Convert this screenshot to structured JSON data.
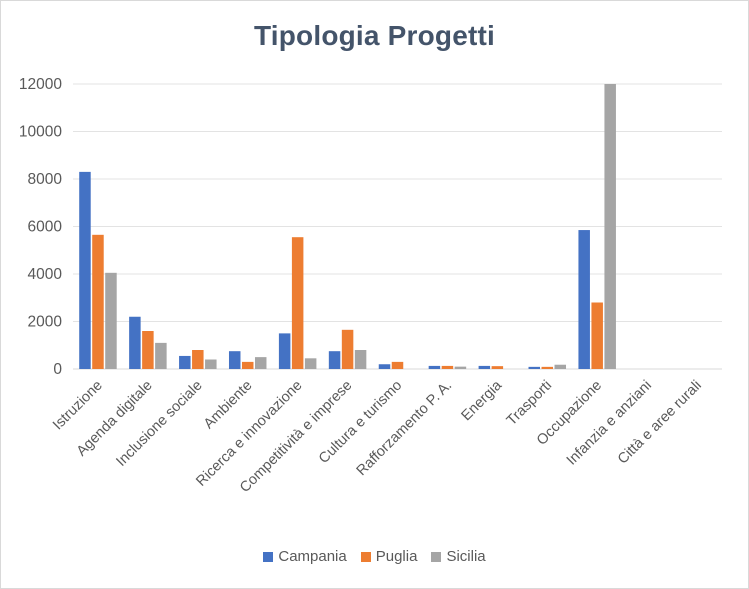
{
  "chart_data": {
    "type": "bar",
    "title": "Tipologia Progetti",
    "xlabel": "",
    "ylabel": "",
    "ylim": [
      0,
      12000
    ],
    "yticks": [
      0,
      2000,
      4000,
      6000,
      8000,
      10000,
      12000
    ],
    "grid": true,
    "legend_position": "bottom",
    "categories": [
      "Istruzione",
      "Agenda digitale",
      "Inclusione sociale",
      "Ambiente",
      "Ricerca e innovazione",
      "Competitività e imprese",
      "Cultura e turismo",
      "Rafforzamento P. A.",
      "Energia",
      "Trasporti",
      "Occupazione",
      "Infanzia e anziani",
      "Città e aree rurali"
    ],
    "series": [
      {
        "name": "Campania",
        "color": "#4472c4",
        "values": [
          8300,
          2200,
          550,
          750,
          1500,
          750,
          200,
          130,
          130,
          90,
          5850,
          0,
          0
        ]
      },
      {
        "name": "Puglia",
        "color": "#ed7d31",
        "values": [
          5650,
          1600,
          800,
          300,
          5550,
          1650,
          300,
          130,
          120,
          90,
          2800,
          0,
          0
        ]
      },
      {
        "name": "Sicilia",
        "color": "#a5a5a5",
        "values": [
          4050,
          1100,
          400,
          500,
          450,
          800,
          0,
          100,
          0,
          180,
          12000,
          0,
          0
        ]
      }
    ]
  }
}
